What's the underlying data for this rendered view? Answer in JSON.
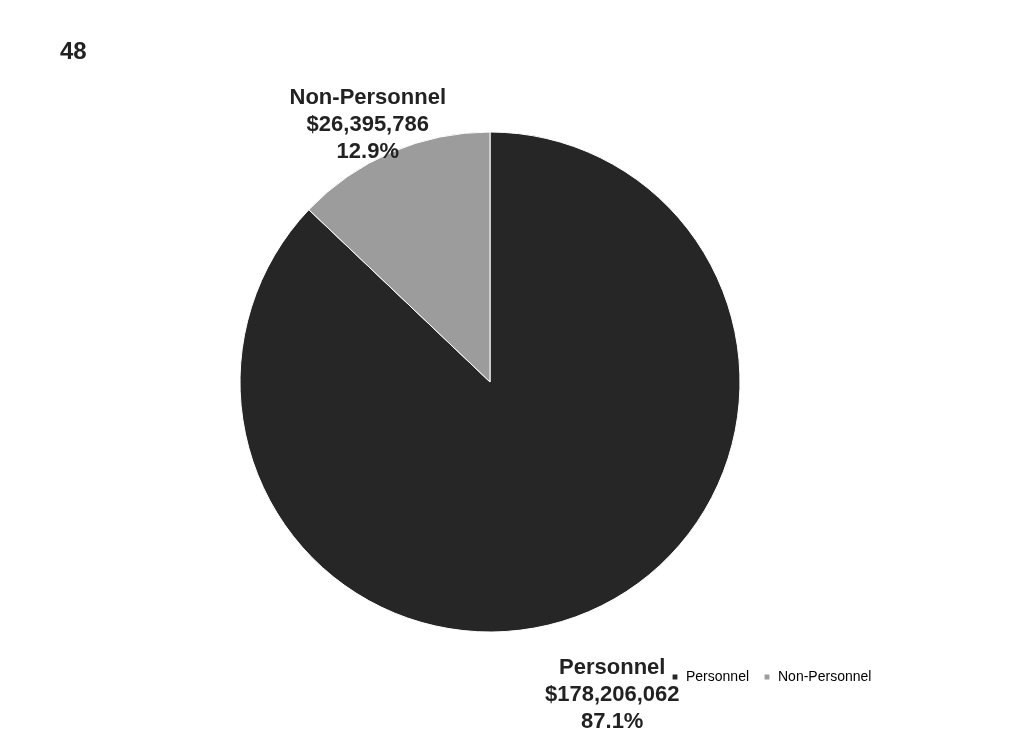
{
  "chart_data": {
    "type": "pie",
    "categories": [
      "Personnel",
      "Non-Personnel"
    ],
    "values": [
      178206062,
      26395786
    ],
    "colors": [
      "#262626",
      "#9c9c9c"
    ],
    "value_labels": [
      "$178,206,062\n87.1%",
      "$26,395,786\n12.9%"
    ],
    "legend": "bottom right",
    "annotations": [
      "48"
    ]
  }
}
